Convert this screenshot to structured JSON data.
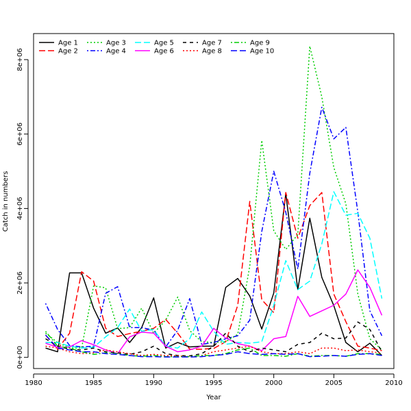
{
  "chart_data": {
    "type": "line",
    "xlabel": "Year",
    "ylabel": "Catch in numbers",
    "xlim": [
      1980,
      2010
    ],
    "ylim": [
      -300000,
      8700000
    ],
    "x_ticks": [
      1980,
      1985,
      1990,
      1995,
      2000,
      2005,
      2010
    ],
    "y_ticks": [
      0,
      2000000,
      4000000,
      6000000,
      8000000
    ],
    "y_tick_labels": [
      "0e+00",
      "2e+06",
      "4e+06",
      "6e+06",
      "8e+06"
    ],
    "legend_position": "top-left",
    "grid": false,
    "x": [
      1981,
      1982,
      1983,
      1984,
      1985,
      1986,
      1987,
      1988,
      1989,
      1990,
      1991,
      1992,
      1993,
      1994,
      1995,
      1996,
      1997,
      1998,
      1999,
      2000,
      2001,
      2002,
      2003,
      2004,
      2005,
      2006,
      2007,
      2008,
      2009
    ],
    "series": [
      {
        "name": "Age 1",
        "color": "#000000",
        "dash": "solid",
        "values": [
          250000,
          150000,
          2270000,
          2270000,
          1320000,
          650000,
          790000,
          400000,
          800000,
          1600000,
          250000,
          400000,
          280000,
          300000,
          300000,
          1880000,
          2120000,
          1650000,
          760000,
          1730000,
          4400000,
          1820000,
          3740000,
          2150000,
          1390000,
          400000,
          150000,
          380000,
          50000
        ]
      },
      {
        "name": "Age 2",
        "color": "#ff0000",
        "dash": "longdash",
        "values": [
          600000,
          220000,
          650000,
          2300000,
          2050000,
          780000,
          560000,
          640000,
          700000,
          780000,
          1020000,
          650000,
          220000,
          220000,
          240000,
          420000,
          1400000,
          4190000,
          1550000,
          1200000,
          4430000,
          3200000,
          4080000,
          4430000,
          1700000,
          960000,
          300000,
          250000,
          180000
        ]
      },
      {
        "name": "Age 3",
        "color": "#00cd00",
        "dash": "dotted",
        "values": [
          650000,
          400000,
          250000,
          250000,
          1920000,
          1870000,
          770000,
          800000,
          1320000,
          650000,
          1000000,
          1620000,
          720000,
          420000,
          400000,
          420000,
          620000,
          2450000,
          5830000,
          3400000,
          2900000,
          3300000,
          8360000,
          7000000,
          5100000,
          4130000,
          1700000,
          500000,
          200000
        ]
      },
      {
        "name": "Age 4",
        "color": "#0000ff",
        "dash": "dotdash",
        "values": [
          1450000,
          750000,
          320000,
          280000,
          300000,
          1720000,
          1900000,
          800000,
          800000,
          730000,
          280000,
          730000,
          1580000,
          350000,
          400000,
          500000,
          580000,
          1000000,
          3380000,
          5000000,
          3900000,
          2370000,
          4950000,
          6720000,
          5870000,
          6180000,
          3900000,
          1250000,
          580000
        ]
      },
      {
        "name": "Age 5",
        "color": "#00ffff",
        "dash": "longdash",
        "values": [
          400000,
          400000,
          300000,
          250000,
          270000,
          550000,
          800000,
          1300000,
          700000,
          750000,
          300000,
          250000,
          500000,
          1220000,
          700000,
          350000,
          400000,
          380000,
          420000,
          1400000,
          2600000,
          1820000,
          2050000,
          3050000,
          4450000,
          3820000,
          3870000,
          3200000,
          1580000
        ]
      },
      {
        "name": "Age 6",
        "color": "#ff00ff",
        "dash": "solid",
        "values": [
          380000,
          270000,
          280000,
          450000,
          340000,
          200000,
          100000,
          550000,
          680000,
          650000,
          300000,
          150000,
          200000,
          300000,
          780000,
          520000,
          370000,
          300000,
          180000,
          500000,
          560000,
          1640000,
          1100000,
          1250000,
          1400000,
          1700000,
          2350000,
          1880000,
          1130000
        ]
      },
      {
        "name": "Age 7",
        "color": "#000000",
        "dash": "dashed",
        "values": [
          500000,
          300000,
          220000,
          200000,
          250000,
          150000,
          120000,
          80000,
          150000,
          300000,
          100000,
          50000,
          40000,
          100000,
          300000,
          650000,
          300000,
          150000,
          250000,
          200000,
          150000,
          350000,
          400000,
          650000,
          500000,
          520000,
          950000,
          750000,
          150000
        ]
      },
      {
        "name": "Age 8",
        "color": "#ff0000",
        "dash": "dotted",
        "values": [
          300000,
          250000,
          150000,
          100000,
          120000,
          200000,
          150000,
          100000,
          50000,
          80000,
          50000,
          40000,
          20000,
          50000,
          150000,
          200000,
          250000,
          300000,
          150000,
          100000,
          100000,
          150000,
          100000,
          250000,
          250000,
          180000,
          200000,
          150000,
          120000
        ]
      },
      {
        "name": "Age 9",
        "color": "#00cd00",
        "dash": "dotdash",
        "values": [
          700000,
          300000,
          250000,
          150000,
          80000,
          120000,
          100000,
          50000,
          30000,
          50000,
          20000,
          20000,
          20000,
          50000,
          50000,
          100000,
          200000,
          250000,
          50000,
          50000,
          30000,
          100000,
          30000,
          50000,
          50000,
          30000,
          100000,
          100000,
          80000
        ]
      },
      {
        "name": "Age 10",
        "color": "#0000ff",
        "dash": "longdash",
        "values": [
          600000,
          250000,
          200000,
          150000,
          150000,
          100000,
          80000,
          50000,
          20000,
          20000,
          10000,
          10000,
          10000,
          20000,
          50000,
          80000,
          150000,
          100000,
          80000,
          100000,
          80000,
          100000,
          20000,
          30000,
          50000,
          30000,
          80000,
          100000,
          50000
        ]
      }
    ]
  }
}
